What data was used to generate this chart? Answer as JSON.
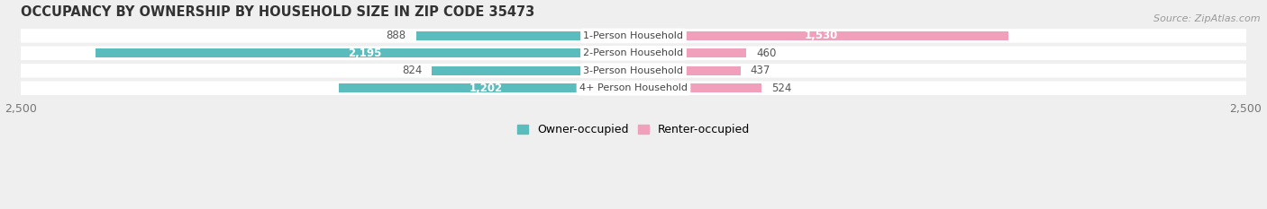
{
  "title": "OCCUPANCY BY OWNERSHIP BY HOUSEHOLD SIZE IN ZIP CODE 35473",
  "source": "Source: ZipAtlas.com",
  "categories": [
    "1-Person Household",
    "2-Person Household",
    "3-Person Household",
    "4+ Person Household"
  ],
  "owner_values": [
    888,
    2195,
    824,
    1202
  ],
  "renter_values": [
    1530,
    460,
    437,
    524
  ],
  "owner_color": "#5bbcbd",
  "renter_color": "#f0a0bb",
  "axis_max": 2500,
  "background_color": "#efefef",
  "bar_background": "#ffffff",
  "title_fontsize": 10.5,
  "source_fontsize": 8,
  "tick_fontsize": 9,
  "bar_label_fontsize": 8.5,
  "cat_label_fontsize": 8,
  "legend_fontsize": 9,
  "inside_label_threshold": 1200
}
